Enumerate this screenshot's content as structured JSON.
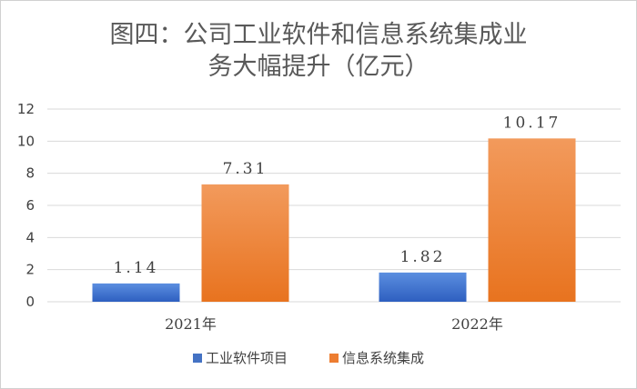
{
  "chart_data": {
    "type": "bar",
    "title_lines": [
      "图四：公司工业软件和信息系统集成业",
      "务大幅提升（亿元）"
    ],
    "categories": [
      "2021年",
      "2022年"
    ],
    "series": [
      {
        "name": "工业软件项目",
        "values": [
          1.14,
          1.82
        ],
        "data_labels": [
          "1.14",
          "1.82"
        ],
        "color": "#4472c4"
      },
      {
        "name": "信息系统集成",
        "values": [
          7.31,
          10.17
        ],
        "data_labels": [
          "7.31",
          "10.17"
        ],
        "color": "#ed7d31"
      }
    ],
    "ylim": [
      0,
      12
    ],
    "yticks": [
      0,
      2,
      4,
      6,
      8,
      10,
      12
    ],
    "xlabel": "",
    "ylabel": "",
    "grid": true,
    "legend": "bottom"
  }
}
